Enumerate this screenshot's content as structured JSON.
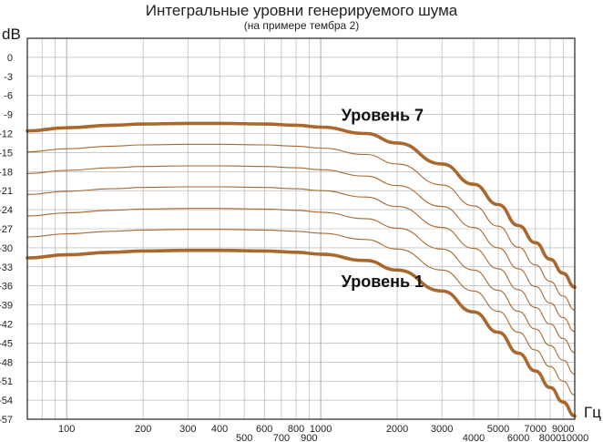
{
  "chart_data": {
    "type": "line",
    "title": "Интегральные уровни генерируемого шума",
    "subtitle": "(на примере тембра 2)",
    "ylabel": "dB",
    "xlabel": "Гц",
    "x_scale": "log",
    "xlim": [
      70,
      10000
    ],
    "ylim": [
      -57,
      3
    ],
    "grid": true,
    "colors": {
      "curve": "#a8682e",
      "grid": "#aaaaaa",
      "axis": "#222222"
    },
    "yticks": [
      "0",
      "-3",
      "-6",
      "-9",
      "-12",
      "-15",
      "-18",
      "-21",
      "-24",
      "-27",
      "-30",
      "-33",
      "-36",
      "-39",
      "-42",
      "-45",
      "-48",
      "-51",
      "-54",
      "-57"
    ],
    "xticks_top": [
      "100",
      "200",
      "300",
      "400",
      "600",
      "800",
      "1000",
      "2000",
      "3000",
      "5000",
      "7000",
      "9000"
    ],
    "xticks_bottom": [
      "500",
      "700",
      "900",
      "4000",
      "6000",
      "8000",
      "10000"
    ],
    "x": [
      70,
      100,
      150,
      200,
      300,
      400,
      600,
      800,
      1000,
      1500,
      2000,
      3000,
      4000,
      5000,
      6000,
      7000,
      8000,
      9000,
      10000
    ],
    "series": [
      {
        "name": "Уровень 7",
        "bold": true,
        "values": [
          -11.6,
          -11.1,
          -10.7,
          -10.5,
          -10.4,
          -10.4,
          -10.5,
          -10.7,
          -11.0,
          -12.0,
          -13.5,
          -16.8,
          -20.0,
          -23.2,
          -26.5,
          -29.2,
          -31.8,
          -34.0,
          -36.2
        ]
      },
      {
        "name": "",
        "bold": false,
        "values": [
          -14.9,
          -14.4,
          -14.0,
          -13.8,
          -13.7,
          -13.7,
          -13.8,
          -14.0,
          -14.3,
          -15.3,
          -16.8,
          -20.1,
          -23.4,
          -26.6,
          -29.9,
          -32.7,
          -35.3,
          -37.6,
          -39.8
        ]
      },
      {
        "name": "",
        "bold": false,
        "values": [
          -18.3,
          -17.8,
          -17.4,
          -17.2,
          -17.1,
          -17.1,
          -17.2,
          -17.4,
          -17.7,
          -18.7,
          -20.2,
          -23.5,
          -26.8,
          -30.0,
          -33.3,
          -36.1,
          -38.7,
          -41.0,
          -43.2
        ]
      },
      {
        "name": "",
        "bold": false,
        "values": [
          -21.6,
          -21.1,
          -20.7,
          -20.5,
          -20.4,
          -20.4,
          -20.5,
          -20.7,
          -21.0,
          -22.0,
          -23.5,
          -26.8,
          -30.1,
          -33.3,
          -36.6,
          -39.4,
          -42.0,
          -44.3,
          -46.5
        ]
      },
      {
        "name": "",
        "bold": false,
        "values": [
          -25.0,
          -24.5,
          -24.1,
          -23.9,
          -23.8,
          -23.8,
          -23.9,
          -24.1,
          -24.4,
          -25.4,
          -26.9,
          -30.2,
          -33.5,
          -36.7,
          -40.0,
          -42.8,
          -45.4,
          -47.7,
          -49.9
        ]
      },
      {
        "name": "",
        "bold": false,
        "values": [
          -28.3,
          -27.8,
          -27.4,
          -27.2,
          -27.1,
          -27.1,
          -27.2,
          -27.4,
          -27.7,
          -28.7,
          -30.2,
          -33.5,
          -36.8,
          -40.0,
          -43.3,
          -46.1,
          -48.7,
          -51.0,
          -53.2
        ]
      },
      {
        "name": "Уровень 1",
        "bold": true,
        "values": [
          -31.6,
          -31.1,
          -30.7,
          -30.5,
          -30.4,
          -30.4,
          -30.5,
          -30.7,
          -31.0,
          -32.0,
          -33.5,
          -36.8,
          -40.1,
          -43.3,
          -46.6,
          -49.4,
          -52.0,
          -54.3,
          -56.5
        ]
      }
    ]
  }
}
